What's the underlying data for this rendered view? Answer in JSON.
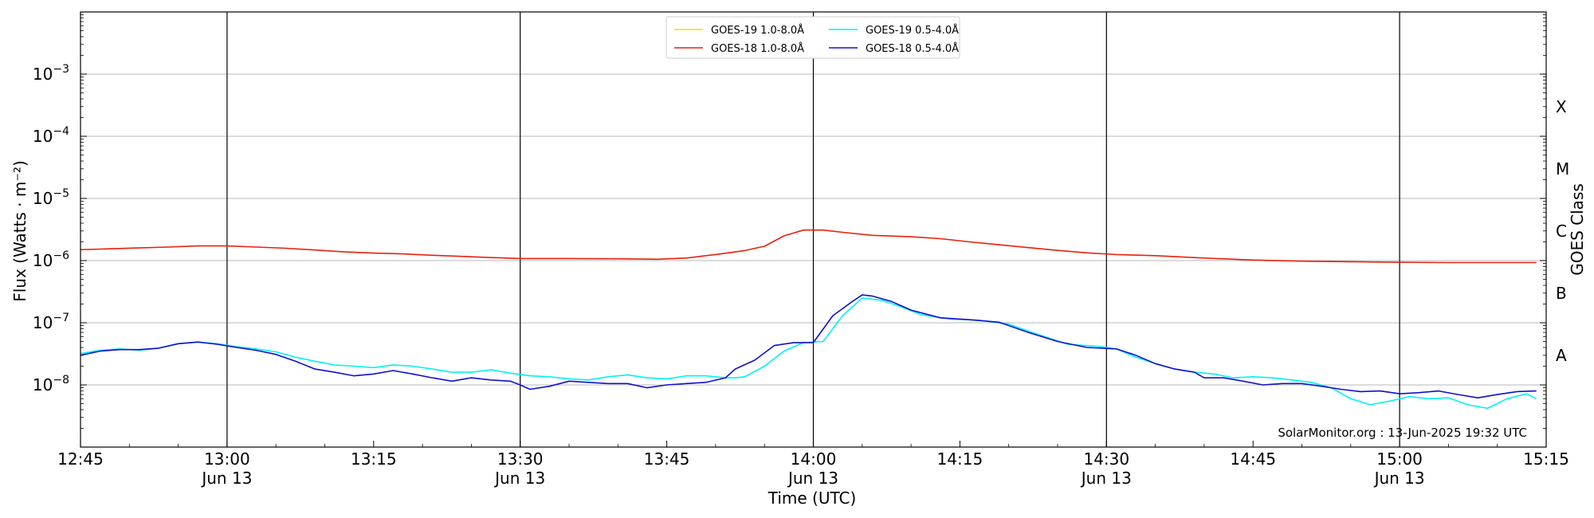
{
  "chart_data": {
    "type": "line",
    "title": "",
    "xlabel": "Time (UTC)",
    "ylabel": "Flux (Watts · m⁻²)",
    "y2label": "GOES Class",
    "yscale": "log",
    "xlim": [
      "12:45",
      "15:15"
    ],
    "ylim": [
      1e-09,
      0.01
    ],
    "grid": "horizontal at decades",
    "legend_position": "top-center",
    "credit": "SolarMonitor.org : 13-Jun-2025 19:32 UTC",
    "x_ticks": [
      {
        "t": "12:45",
        "label": "12:45",
        "date": ""
      },
      {
        "t": "13:00",
        "label": "13:00",
        "date": "Jun 13"
      },
      {
        "t": "13:15",
        "label": "13:15",
        "date": ""
      },
      {
        "t": "13:30",
        "label": "13:30",
        "date": "Jun 13"
      },
      {
        "t": "13:45",
        "label": "13:45",
        "date": ""
      },
      {
        "t": "14:00",
        "label": "14:00",
        "date": "Jun 13"
      },
      {
        "t": "14:15",
        "label": "14:15",
        "date": ""
      },
      {
        "t": "14:30",
        "label": "14:30",
        "date": "Jun 13"
      },
      {
        "t": "14:45",
        "label": "14:45",
        "date": ""
      },
      {
        "t": "15:00",
        "label": "15:00",
        "date": "Jun 13"
      },
      {
        "t": "15:15",
        "label": "15:15",
        "date": ""
      }
    ],
    "y_ticks": [
      {
        "value": 1e-08,
        "mantissa": "10",
        "exponent": "−8"
      },
      {
        "value": 1e-07,
        "mantissa": "10",
        "exponent": "−7"
      },
      {
        "value": 1e-06,
        "mantissa": "10",
        "exponent": "−6"
      },
      {
        "value": 1e-05,
        "mantissa": "10",
        "exponent": "−5"
      },
      {
        "value": 0.0001,
        "mantissa": "10",
        "exponent": "−4"
      },
      {
        "value": 0.001,
        "mantissa": "10",
        "exponent": "−3"
      }
    ],
    "goes_classes": [
      {
        "label": "A",
        "value": 3e-08
      },
      {
        "label": "B",
        "value": 3e-07
      },
      {
        "label": "C",
        "value": 3e-06
      },
      {
        "label": "M",
        "value": 3e-05
      },
      {
        "label": "X",
        "value": 0.0003
      }
    ],
    "series": [
      {
        "name": "GOES-19 1.0-8.0Å",
        "color": "#FFD700",
        "points": []
      },
      {
        "name": "GOES-18 1.0-8.0Å",
        "color": "#E8200C",
        "points": [
          [
            "12:45",
            1.5e-06
          ],
          [
            "12:48",
            1.55e-06
          ],
          [
            "12:51",
            1.6e-06
          ],
          [
            "12:54",
            1.65e-06
          ],
          [
            "12:57",
            1.72e-06
          ],
          [
            "13:00",
            1.72e-06
          ],
          [
            "13:03",
            1.65e-06
          ],
          [
            "13:06",
            1.58e-06
          ],
          [
            "13:09",
            1.48e-06
          ],
          [
            "13:12",
            1.38e-06
          ],
          [
            "13:15",
            1.32e-06
          ],
          [
            "13:18",
            1.28e-06
          ],
          [
            "13:21",
            1.22e-06
          ],
          [
            "13:24",
            1.17e-06
          ],
          [
            "13:27",
            1.12e-06
          ],
          [
            "13:30",
            1.08e-06
          ],
          [
            "13:35",
            1.08e-06
          ],
          [
            "13:40",
            1.07e-06
          ],
          [
            "13:44",
            1.05e-06
          ],
          [
            "13:47",
            1.1e-06
          ],
          [
            "13:50",
            1.25e-06
          ],
          [
            "13:53",
            1.45e-06
          ],
          [
            "13:55",
            1.7e-06
          ],
          [
            "13:57",
            2.5e-06
          ],
          [
            "13:59",
            3.1e-06
          ],
          [
            "14:01",
            3.1e-06
          ],
          [
            "14:03",
            2.85e-06
          ],
          [
            "14:06",
            2.55e-06
          ],
          [
            "14:10",
            2.42e-06
          ],
          [
            "14:13",
            2.25e-06
          ],
          [
            "14:16",
            2e-06
          ],
          [
            "14:19",
            1.8e-06
          ],
          [
            "14:22",
            1.62e-06
          ],
          [
            "14:25",
            1.46e-06
          ],
          [
            "14:28",
            1.33e-06
          ],
          [
            "14:31",
            1.25e-06
          ],
          [
            "14:35",
            1.2e-06
          ],
          [
            "14:40",
            1.1e-06
          ],
          [
            "14:45",
            1.02e-06
          ],
          [
            "14:50",
            9.8e-07
          ],
          [
            "14:55",
            9.6e-07
          ],
          [
            "15:00",
            9.4e-07
          ],
          [
            "15:05",
            9.3e-07
          ],
          [
            "15:10",
            9.3e-07
          ],
          [
            "15:14",
            9.3e-07
          ]
        ]
      },
      {
        "name": "GOES-19 0.5-4.0Å",
        "color": "#00F2F2",
        "points": [
          [
            "12:45",
            3.2e-08
          ],
          [
            "12:47",
            3.6e-08
          ],
          [
            "12:49",
            3.8e-08
          ],
          [
            "12:51",
            3.6e-08
          ],
          [
            "12:53",
            3.9e-08
          ],
          [
            "12:55",
            4.6e-08
          ],
          [
            "12:57",
            4.9e-08
          ],
          [
            "12:59",
            4.6e-08
          ],
          [
            "13:01",
            4.1e-08
          ],
          [
            "13:03",
            3.8e-08
          ],
          [
            "13:05",
            3.4e-08
          ],
          [
            "13:07",
            2.8e-08
          ],
          [
            "13:09",
            2.4e-08
          ],
          [
            "13:11",
            2.1e-08
          ],
          [
            "13:13",
            2e-08
          ],
          [
            "13:15",
            1.9e-08
          ],
          [
            "13:17",
            2.1e-08
          ],
          [
            "13:19",
            2e-08
          ],
          [
            "13:21",
            1.8e-08
          ],
          [
            "13:23",
            1.6e-08
          ],
          [
            "13:25",
            1.6e-08
          ],
          [
            "13:27",
            1.75e-08
          ],
          [
            "13:29",
            1.55e-08
          ],
          [
            "13:31",
            1.4e-08
          ],
          [
            "13:33",
            1.35e-08
          ],
          [
            "13:35",
            1.25e-08
          ],
          [
            "13:37",
            1.2e-08
          ],
          [
            "13:39",
            1.35e-08
          ],
          [
            "13:41",
            1.45e-08
          ],
          [
            "13:43",
            1.3e-08
          ],
          [
            "13:45",
            1.25e-08
          ],
          [
            "13:47",
            1.4e-08
          ],
          [
            "13:49",
            1.4e-08
          ],
          [
            "13:51",
            1.3e-08
          ],
          [
            "13:52",
            1.3e-08
          ],
          [
            "13:53",
            1.35e-08
          ],
          [
            "13:55",
            2e-08
          ],
          [
            "13:57",
            3.5e-08
          ],
          [
            "13:59",
            4.8e-08
          ],
          [
            "14:01",
            5e-08
          ],
          [
            "14:03",
            1.3e-07
          ],
          [
            "14:05",
            2.5e-07
          ],
          [
            "14:07",
            2.3e-07
          ],
          [
            "14:09",
            1.8e-07
          ],
          [
            "14:11",
            1.35e-07
          ],
          [
            "14:14",
            1.15e-07
          ],
          [
            "14:17",
            1.1e-07
          ],
          [
            "14:20",
            9.5e-08
          ],
          [
            "14:23",
            6.5e-08
          ],
          [
            "14:26",
            4.5e-08
          ],
          [
            "14:29",
            4.2e-08
          ],
          [
            "14:31",
            3.8e-08
          ],
          [
            "14:33",
            2.8e-08
          ],
          [
            "14:35",
            2.2e-08
          ],
          [
            "14:37",
            1.8e-08
          ],
          [
            "14:39",
            1.6e-08
          ],
          [
            "14:41",
            1.5e-08
          ],
          [
            "14:43",
            1.3e-08
          ],
          [
            "14:45",
            1.35e-08
          ],
          [
            "14:47",
            1.3e-08
          ],
          [
            "14:49",
            1.2e-08
          ],
          [
            "14:51",
            1.1e-08
          ],
          [
            "14:53",
            9e-09
          ],
          [
            "14:55",
            6e-09
          ],
          [
            "14:57",
            4.8e-09
          ],
          [
            "14:59",
            5.5e-09
          ],
          [
            "15:01",
            6.5e-09
          ],
          [
            "15:03",
            6e-09
          ],
          [
            "15:05",
            6.2e-09
          ],
          [
            "15:07",
            4.8e-09
          ],
          [
            "15:09",
            4.2e-09
          ],
          [
            "15:11",
            6e-09
          ],
          [
            "15:13",
            7.2e-09
          ],
          [
            "15:14",
            6e-09
          ]
        ]
      },
      {
        "name": "GOES-18 0.5-4.0Å",
        "color": "#1010D0",
        "points": [
          [
            "12:45",
            3e-08
          ],
          [
            "12:47",
            3.5e-08
          ],
          [
            "12:49",
            3.7e-08
          ],
          [
            "12:51",
            3.7e-08
          ],
          [
            "12:53",
            3.9e-08
          ],
          [
            "12:55",
            4.6e-08
          ],
          [
            "12:57",
            4.9e-08
          ],
          [
            "12:59",
            4.5e-08
          ],
          [
            "13:01",
            4e-08
          ],
          [
            "13:03",
            3.6e-08
          ],
          [
            "13:05",
            3.1e-08
          ],
          [
            "13:07",
            2.4e-08
          ],
          [
            "13:09",
            1.8e-08
          ],
          [
            "13:11",
            1.6e-08
          ],
          [
            "13:13",
            1.4e-08
          ],
          [
            "13:15",
            1.5e-08
          ],
          [
            "13:17",
            1.7e-08
          ],
          [
            "13:19",
            1.5e-08
          ],
          [
            "13:21",
            1.3e-08
          ],
          [
            "13:23",
            1.15e-08
          ],
          [
            "13:25",
            1.3e-08
          ],
          [
            "13:27",
            1.2e-08
          ],
          [
            "13:29",
            1.15e-08
          ],
          [
            "13:30",
            1e-08
          ],
          [
            "13:31",
            8.5e-09
          ],
          [
            "13:33",
            9.5e-09
          ],
          [
            "13:35",
            1.15e-08
          ],
          [
            "13:37",
            1.1e-08
          ],
          [
            "13:39",
            1.05e-08
          ],
          [
            "13:41",
            1.05e-08
          ],
          [
            "13:43",
            9e-09
          ],
          [
            "13:45",
            1e-08
          ],
          [
            "13:47",
            1.05e-08
          ],
          [
            "13:49",
            1.1e-08
          ],
          [
            "13:51",
            1.3e-08
          ],
          [
            "13:52",
            1.8e-08
          ],
          [
            "13:54",
            2.5e-08
          ],
          [
            "13:56",
            4.3e-08
          ],
          [
            "13:58",
            4.8e-08
          ],
          [
            "14:00",
            4.8e-08
          ],
          [
            "14:02",
            1.3e-07
          ],
          [
            "14:04",
            2.2e-07
          ],
          [
            "14:05",
            2.8e-07
          ],
          [
            "14:06",
            2.7e-07
          ],
          [
            "14:08",
            2.2e-07
          ],
          [
            "14:10",
            1.6e-07
          ],
          [
            "14:13",
            1.2e-07
          ],
          [
            "14:16",
            1.12e-07
          ],
          [
            "14:19",
            1.02e-07
          ],
          [
            "14:22",
            7e-08
          ],
          [
            "14:25",
            5e-08
          ],
          [
            "14:28",
            4e-08
          ],
          [
            "14:31",
            3.8e-08
          ],
          [
            "14:33",
            3e-08
          ],
          [
            "14:35",
            2.2e-08
          ],
          [
            "14:37",
            1.8e-08
          ],
          [
            "14:39",
            1.6e-08
          ],
          [
            "14:40",
            1.3e-08
          ],
          [
            "14:42",
            1.3e-08
          ],
          [
            "14:44",
            1.15e-08
          ],
          [
            "14:46",
            1e-08
          ],
          [
            "14:48",
            1.05e-08
          ],
          [
            "14:50",
            1.05e-08
          ],
          [
            "14:52",
            9.5e-09
          ],
          [
            "14:54",
            8.5e-09
          ],
          [
            "14:56",
            7.8e-09
          ],
          [
            "14:58",
            8e-09
          ],
          [
            "15:00",
            7.2e-09
          ],
          [
            "15:02",
            7.5e-09
          ],
          [
            "15:04",
            8e-09
          ],
          [
            "15:06",
            7e-09
          ],
          [
            "15:08",
            6.2e-09
          ],
          [
            "15:10",
            7e-09
          ],
          [
            "15:12",
            7.8e-09
          ],
          [
            "15:14",
            8e-09
          ]
        ]
      }
    ]
  }
}
